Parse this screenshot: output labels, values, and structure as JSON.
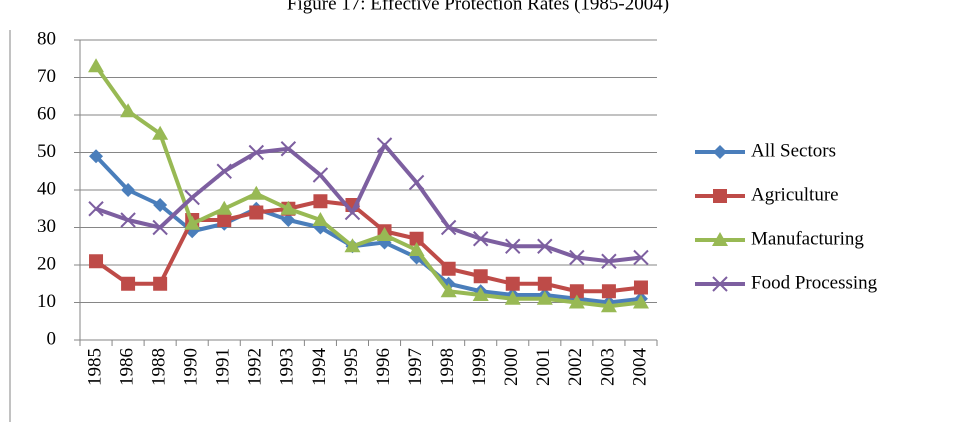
{
  "chart_data": {
    "type": "line",
    "title": "Figure 17: Effective Protection Rates (1985-2004)",
    "categories": [
      "1985",
      "1986",
      "1988",
      "1990",
      "1991",
      "1992",
      "1993",
      "1994",
      "1995",
      "1996",
      "1997",
      "1998",
      "1999",
      "2000",
      "2001",
      "2002",
      "2003",
      "2004"
    ],
    "series": [
      {
        "name": "All Sectors",
        "color": "#4a7ebb",
        "marker": "diamond",
        "values": [
          49,
          40,
          36,
          29,
          31,
          35,
          32,
          30,
          25,
          26,
          22,
          15,
          13,
          12,
          12,
          11,
          10,
          11
        ]
      },
      {
        "name": "Agriculture",
        "color": "#be4b48",
        "marker": "square",
        "values": [
          21,
          15,
          15,
          32,
          32,
          34,
          35,
          37,
          36,
          29,
          27,
          19,
          17,
          15,
          15,
          13,
          13,
          14
        ]
      },
      {
        "name": "Manufacturing",
        "color": "#98b954",
        "marker": "triangle",
        "values": [
          73,
          61,
          55,
          31,
          35,
          39,
          35,
          32,
          25,
          28,
          24,
          13,
          12,
          11,
          11,
          10,
          9,
          10
        ]
      },
      {
        "name": "Food Processing",
        "color": "#7d5fa0",
        "marker": "x",
        "values": [
          35,
          32,
          30,
          38,
          45,
          50,
          51,
          44,
          34,
          52,
          42,
          30,
          27,
          25,
          25,
          22,
          21,
          22
        ]
      }
    ],
    "ylim": [
      0,
      80
    ],
    "yticks": [
      0,
      10,
      20,
      30,
      40,
      50,
      60,
      70,
      80
    ],
    "grid": true,
    "legend": "right"
  }
}
